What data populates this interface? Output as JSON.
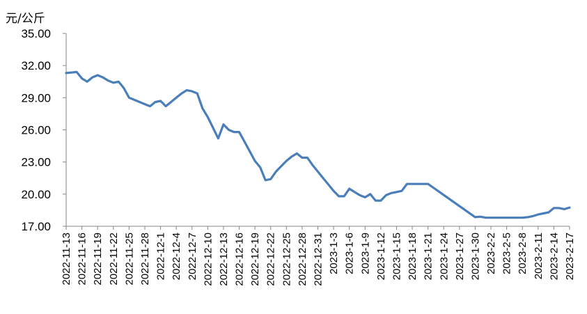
{
  "chart_data": {
    "type": "line",
    "title": "",
    "xlabel": "",
    "ylabel": "元/公斤",
    "ylim": [
      17,
      35
    ],
    "yticks": [
      "17.00",
      "20.00",
      "23.00",
      "26.00",
      "29.00",
      "32.00",
      "35.00"
    ],
    "x_tick_labels": [
      "2022-11-13",
      "2022-11-16",
      "2022-11-19",
      "2022-11-22",
      "2022-11-25",
      "2022-11-28",
      "2022-12-1",
      "2022-12-4",
      "2022-12-7",
      "2022-12-10",
      "2022-12-13",
      "2022-12-16",
      "2022-12-19",
      "2022-12-22",
      "2022-12-25",
      "2022-12-28",
      "2022-12-31",
      "2023-1-3",
      "2023-1-6",
      "2023-1-9",
      "2023-1-12",
      "2023-1-15",
      "2023-1-18",
      "2023-1-21",
      "2023-1-24",
      "2023-1-27",
      "2023-1-30",
      "2023-2-2",
      "2023-2-5",
      "2023-2-8",
      "2023-2-11",
      "2023-2-14",
      "2023-2-17"
    ],
    "grid": false,
    "line_color": "#4a7ebb",
    "series": [
      {
        "x": [
          "2022-11-13",
          "2022-11-14",
          "2022-11-15",
          "2022-11-16",
          "2022-11-17",
          "2022-11-18",
          "2022-11-19",
          "2022-11-20",
          "2022-11-21",
          "2022-11-22",
          "2022-11-23",
          "2022-11-24",
          "2022-11-25",
          "2022-11-26",
          "2022-11-27",
          "2022-11-28",
          "2022-11-29",
          "2022-11-30",
          "2022-12-1",
          "2022-12-2",
          "2022-12-3",
          "2022-12-4",
          "2022-12-5",
          "2022-12-6",
          "2022-12-7",
          "2022-12-8",
          "2022-12-9",
          "2022-12-10",
          "2022-12-11",
          "2022-12-12",
          "2022-12-13",
          "2022-12-14",
          "2022-12-15",
          "2022-12-16",
          "2022-12-17",
          "2022-12-18",
          "2022-12-19",
          "2022-12-20",
          "2022-12-21",
          "2022-12-22",
          "2022-12-23",
          "2022-12-24",
          "2022-12-25",
          "2022-12-26",
          "2022-12-27",
          "2022-12-28",
          "2022-12-29",
          "2022-12-30",
          "2022-12-31",
          "2023-1-1",
          "2023-1-2",
          "2023-1-3",
          "2023-1-4",
          "2023-1-5",
          "2023-1-6",
          "2023-1-7",
          "2023-1-8",
          "2023-1-9",
          "2023-1-10",
          "2023-1-11",
          "2023-1-12",
          "2023-1-13",
          "2023-1-14",
          "2023-1-15",
          "2023-1-16",
          "2023-1-17",
          "2023-1-18",
          "2023-1-19",
          "2023-1-20",
          "2023-1-21",
          "2023-1-30",
          "2023-1-31",
          "2023-2-1",
          "2023-2-2",
          "2023-2-3",
          "2023-2-4",
          "2023-2-5",
          "2023-2-6",
          "2023-2-7",
          "2023-2-8",
          "2023-2-9",
          "2023-2-10",
          "2023-2-11",
          "2023-2-12",
          "2023-2-13",
          "2023-2-14",
          "2023-2-15",
          "2023-2-16",
          "2023-2-17"
        ],
        "values": [
          31.3,
          31.35,
          31.4,
          30.8,
          30.5,
          30.9,
          31.1,
          30.9,
          30.6,
          30.4,
          30.5,
          29.9,
          29.0,
          28.8,
          28.6,
          28.4,
          28.2,
          28.6,
          28.7,
          28.2,
          28.6,
          29.0,
          29.4,
          29.7,
          29.6,
          29.4,
          28.0,
          27.2,
          26.2,
          25.2,
          26.5,
          26.0,
          25.8,
          25.8,
          24.9,
          24.0,
          23.1,
          22.5,
          21.3,
          21.4,
          22.1,
          22.6,
          23.1,
          23.5,
          23.8,
          23.4,
          23.4,
          22.7,
          22.1,
          21.5,
          20.9,
          20.3,
          19.8,
          19.8,
          20.5,
          20.2,
          19.9,
          19.7,
          20.0,
          19.4,
          19.4,
          19.9,
          20.1,
          20.2,
          20.3,
          20.95,
          20.95,
          20.95,
          20.95,
          20.95,
          17.85,
          17.9,
          17.8,
          17.8,
          17.8,
          17.8,
          17.8,
          17.8,
          17.8,
          17.8,
          17.85,
          17.95,
          18.1,
          18.2,
          18.3,
          18.7,
          18.7,
          18.6,
          18.75
        ]
      }
    ]
  }
}
